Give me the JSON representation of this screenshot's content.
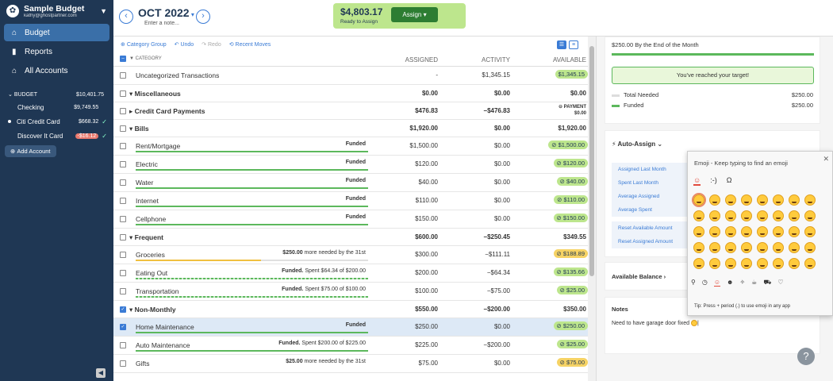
{
  "sidebar": {
    "budget_name": "Sample Budget",
    "email": "kathy@ghostpartner.com",
    "nav": [
      {
        "label": "Budget",
        "icon": "bank-icon"
      },
      {
        "label": "Reports",
        "icon": "bar-chart-icon"
      },
      {
        "label": "All Accounts",
        "icon": "building-icon"
      }
    ],
    "budget_section": {
      "label": "BUDGET",
      "total": "$10,401.75"
    },
    "accounts": [
      {
        "name": "Checking",
        "amount": "$9,749.55"
      },
      {
        "name": "Citi Credit Card",
        "amount": "$668.32"
      },
      {
        "name": "Discover It Card",
        "amount": "-$16.12"
      }
    ],
    "add_account": "Add Account"
  },
  "header": {
    "month": "OCT 2022",
    "note_placeholder": "Enter a note...",
    "ready_amount": "$4,803.17",
    "ready_label": "Ready to Assign",
    "assign_label": "Assign"
  },
  "toolbar": {
    "category_group": "Category Group",
    "undo": "Undo",
    "redo": "Redo",
    "recent_moves": "Recent Moves"
  },
  "columns": {
    "category": "CATEGORY",
    "assigned": "ASSIGNED",
    "activity": "ACTIVITY",
    "available": "AVAILABLE"
  },
  "rows": [
    {
      "type": "cat",
      "name": "Uncategorized Transactions",
      "assigned": "-",
      "activity": "$1,345.15",
      "available": "$1,345.15",
      "pill": true
    },
    {
      "type": "grp",
      "name": "Miscellaneous",
      "assigned": "$0.00",
      "activity": "$0.00",
      "available": "$0.00"
    },
    {
      "type": "grp",
      "name": "Credit Card Payments",
      "assigned": "$476.83",
      "activity": "−$476.83",
      "available": "$0.00",
      "payment": "PAYMENT"
    },
    {
      "type": "grp",
      "name": "Bills",
      "assigned": "$1,920.00",
      "activity": "$0.00",
      "available": "$1,920.00"
    },
    {
      "type": "cat",
      "name": "Rent/Mortgage",
      "goal": "Funded",
      "assigned": "$1,500.00",
      "activity": "$0.00",
      "available": "$1,500.00",
      "pill": true,
      "bar": "full"
    },
    {
      "type": "cat",
      "name": "Electric",
      "goal": "Funded",
      "assigned": "$120.00",
      "activity": "$0.00",
      "available": "$120.00",
      "pill": true,
      "bar": "full"
    },
    {
      "type": "cat",
      "name": "Water",
      "goal": "Funded",
      "assigned": "$40.00",
      "activity": "$0.00",
      "available": "$40.00",
      "pill": true,
      "bar": "full"
    },
    {
      "type": "cat",
      "name": "Internet",
      "goal": "Funded",
      "assigned": "$110.00",
      "activity": "$0.00",
      "available": "$110.00",
      "pill": true,
      "bar": "full"
    },
    {
      "type": "cat",
      "name": "Cellphone",
      "goal": "Funded",
      "assigned": "$150.00",
      "activity": "$0.00",
      "available": "$150.00",
      "pill": true,
      "bar": "full"
    },
    {
      "type": "grp",
      "name": "Frequent",
      "assigned": "$600.00",
      "activity": "−$250.45",
      "available": "$349.55"
    },
    {
      "type": "cat",
      "name": "Groceries",
      "goal_bold": "$250.00",
      "goal": " more needed by the 31st",
      "assigned": "$300.00",
      "activity": "−$111.11",
      "available": "$188.89",
      "pill": "warn",
      "bar": "part"
    },
    {
      "type": "cat",
      "name": "Eating Out",
      "goal_bold": "Funded.",
      "goal": " Spent $64.34 of $200.00",
      "assigned": "$200.00",
      "activity": "−$64.34",
      "available": "$135.66",
      "pill": true,
      "bar": "dash"
    },
    {
      "type": "cat",
      "name": "Transportation",
      "goal_bold": "Funded.",
      "goal": " Spent $75.00 of $100.00",
      "assigned": "$100.00",
      "activity": "−$75.00",
      "available": "$25.00",
      "pill": true,
      "bar": "dash"
    },
    {
      "type": "grp",
      "name": "Non-Monthly",
      "assigned": "$550.00",
      "activity": "−$200.00",
      "available": "$350.00",
      "checked": true
    },
    {
      "type": "cat",
      "name": "Home Maintenance",
      "goal": "Funded",
      "assigned": "$250.00",
      "activity": "$0.00",
      "available": "$250.00",
      "pill": true,
      "bar": "full",
      "sel": true
    },
    {
      "type": "cat",
      "name": "Auto Maintenance",
      "goal_bold": "Funded.",
      "goal": " Spent $200.00 of $225.00",
      "assigned": "$225.00",
      "activity": "−$200.00",
      "available": "$25.00",
      "pill": true,
      "bar": "full"
    },
    {
      "type": "cat",
      "name": "Gifts",
      "goal_bold": "$25.00",
      "goal": " more needed by the 31st",
      "assigned": "$75.00",
      "activity": "$0.00",
      "available": "$75.00",
      "pill": "warn"
    }
  ],
  "inspector": {
    "target_title": "$250.00 By the End of the Month",
    "reached": "You've reached your target!",
    "total_needed_label": "Total Needed",
    "total_needed": "$250.00",
    "funded_label": "Funded",
    "funded": "$250.00",
    "auto_assign": "Auto-Assign",
    "auto_items": [
      "Assigned Last Month",
      "Spent Last Month",
      "Average Assigned",
      "Average Spent",
      "Reset Available Amount",
      "Reset Assigned Amount"
    ],
    "available_balance": "Available Balance",
    "notes_label": "Notes",
    "note_text": "Need to have garage door fixed"
  },
  "emoji_panel": {
    "title": "Emoji - Keep typing to find an emoji",
    "tabs": [
      "☺",
      ":-)",
      "Ω"
    ],
    "tip": "Tip: Press  + period (.) to use emoji in any app"
  }
}
